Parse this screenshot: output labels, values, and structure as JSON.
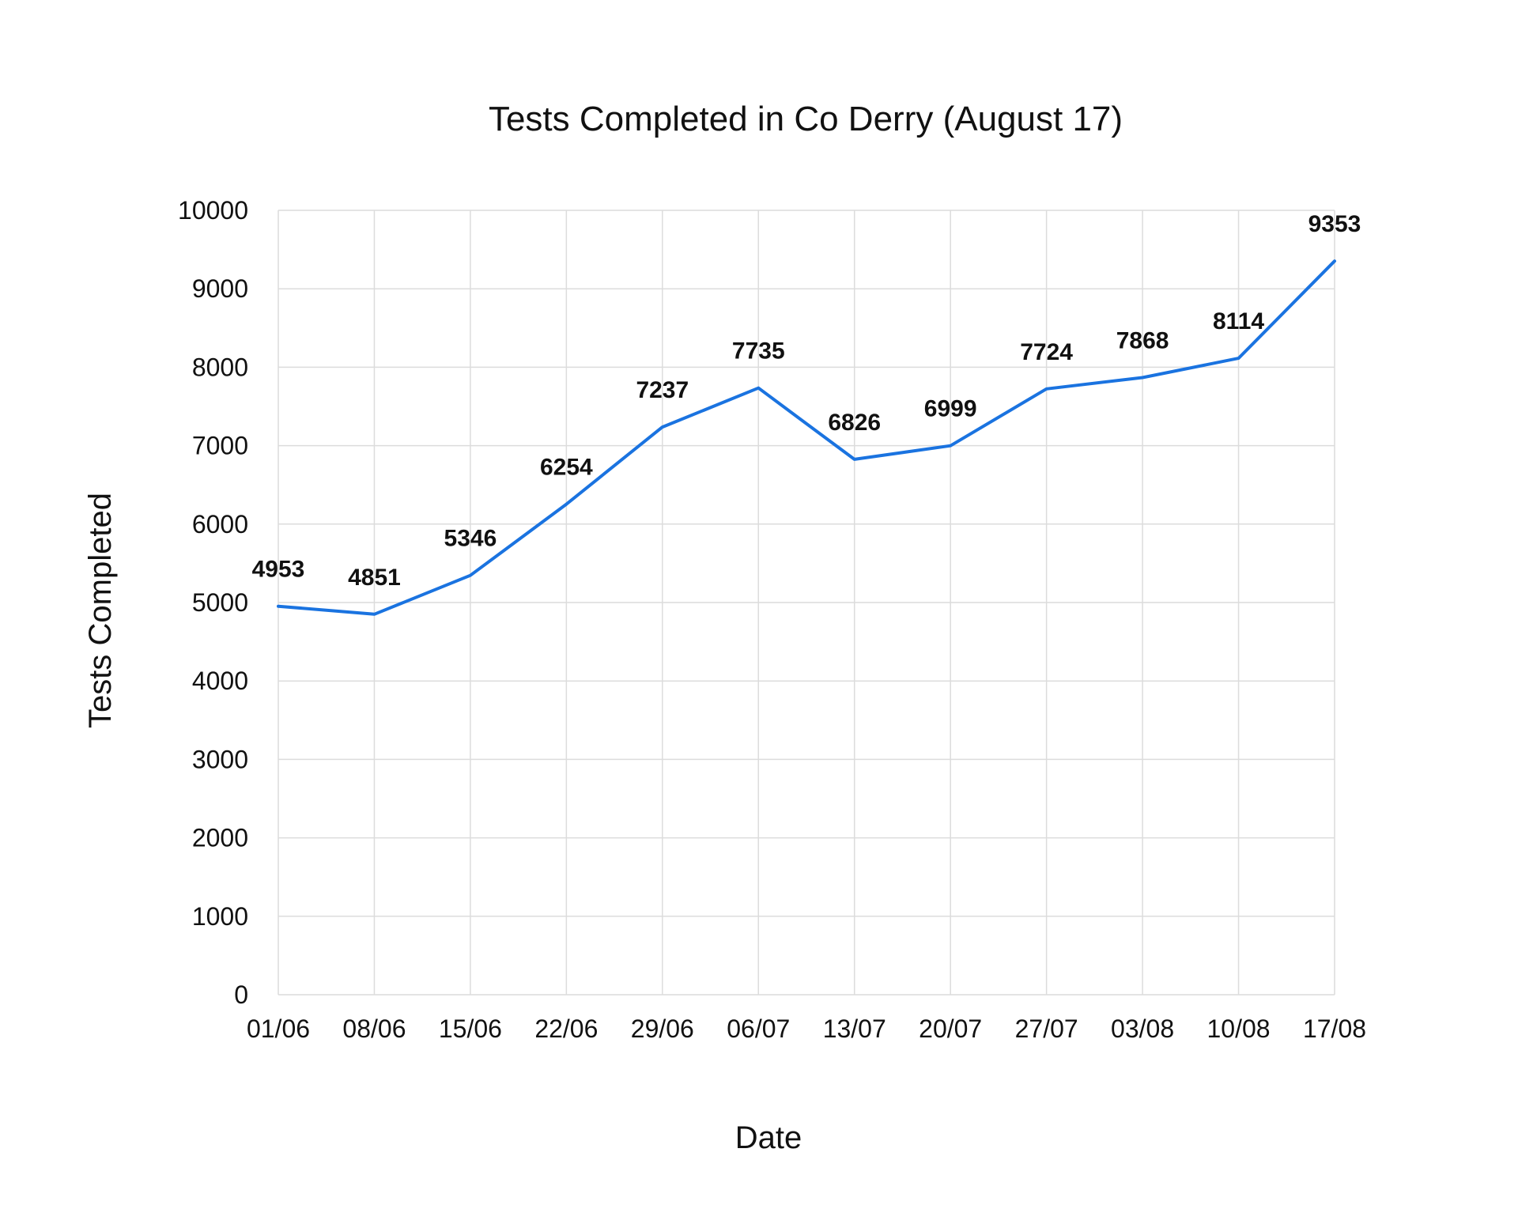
{
  "chart_data": {
    "type": "line",
    "title": "Tests Completed in Co Derry (August 17)",
    "xlabel": "Date",
    "ylabel": "Tests Completed",
    "categories": [
      "01/06",
      "08/06",
      "15/06",
      "22/06",
      "29/06",
      "06/07",
      "13/07",
      "20/07",
      "27/07",
      "03/08",
      "10/08",
      "17/08"
    ],
    "series": [
      {
        "values": [
          4953,
          4851,
          5346,
          6254,
          7237,
          7735,
          6826,
          6999,
          7724,
          7868,
          8114,
          9353
        ],
        "color": "#1a73e0"
      }
    ],
    "ylim": [
      0,
      10000
    ],
    "yticks": [
      0,
      1000,
      2000,
      3000,
      4000,
      5000,
      6000,
      7000,
      8000,
      9000,
      10000
    ],
    "grid": true,
    "data_labels": true,
    "legend": "none"
  }
}
